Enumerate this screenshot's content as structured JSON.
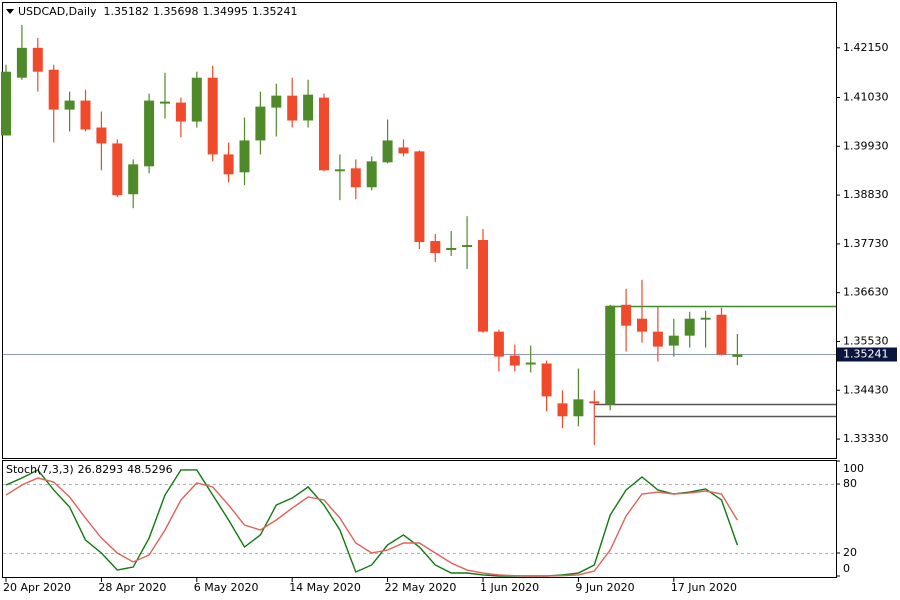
{
  "chart_data": [
    {
      "type": "candlestick",
      "symbol": "USDCAD,Daily",
      "header_ohlc": [
        1.35182,
        1.35698,
        1.34995,
        1.35241
      ],
      "categories": [
        "20 Apr 2020",
        null,
        null,
        null,
        null,
        null,
        "28 Apr 2020",
        null,
        null,
        null,
        null,
        null,
        "6 May 2020",
        null,
        null,
        null,
        null,
        null,
        "14 May 2020",
        null,
        null,
        null,
        null,
        null,
        "22 May 2020",
        null,
        null,
        null,
        null,
        null,
        "1 Jun 2020",
        null,
        null,
        null,
        null,
        null,
        "9 Jun 2020",
        null,
        null,
        null,
        null,
        null,
        "17 Jun 2020",
        null,
        null,
        null,
        null
      ],
      "open": [
        1.40174,
        1.41476,
        1.42149,
        1.41656,
        1.40757,
        1.4096,
        1.40353,
        1.39994,
        1.38849,
        1.39478,
        1.40892,
        1.40915,
        1.40488,
        1.41476,
        1.39747,
        1.39343,
        1.40062,
        1.40802,
        1.41072,
        1.40511,
        1.41027,
        1.39366,
        1.39433,
        1.39006,
        1.39568,
        1.39904,
        1.39815,
        1.37794,
        1.37592,
        1.37659,
        1.37817,
        1.35751,
        1.35212,
        1.3501,
        1.35033,
        1.34135,
        1.33843,
        1.3418,
        1.34112,
        1.36357,
        1.36043,
        1.35751,
        1.35437,
        1.35661,
        1.36021,
        1.36133,
        1.35182
      ],
      "high": [
        1.41768,
        1.42666,
        1.42374,
        1.41768,
        1.41162,
        1.41206,
        1.40713,
        1.40084,
        1.39635,
        1.41117,
        1.41588,
        1.41027,
        1.41611,
        1.41745,
        1.40017,
        1.40578,
        1.41162,
        1.41341,
        1.41476,
        1.41431,
        1.41117,
        1.39747,
        1.39635,
        1.39702,
        1.40533,
        1.40084,
        1.39837,
        1.37951,
        1.38019,
        1.38355,
        1.38063,
        1.35796,
        1.35459,
        1.35437,
        1.351,
        1.34427,
        1.3492,
        1.34427,
        1.36357,
        1.36716,
        1.36919,
        1.36312,
        1.36043,
        1.362,
        1.36223,
        1.3629,
        1.35698
      ],
      "low": [
        1.40174,
        1.41431,
        1.41162,
        1.40017,
        1.40264,
        1.40264,
        1.39388,
        1.38782,
        1.38535,
        1.39321,
        1.40555,
        1.40129,
        1.40353,
        1.3959,
        1.39119,
        1.39051,
        1.39747,
        1.40151,
        1.40353,
        1.40353,
        1.39366,
        1.38715,
        1.38737,
        1.38939,
        1.39545,
        1.39702,
        1.37614,
        1.37323,
        1.37457,
        1.37165,
        1.35729,
        1.34853,
        1.34853,
        1.34831,
        1.33955,
        1.33573,
        1.33618,
        1.33192,
        1.33978,
        1.35302,
        1.35504,
        1.35078,
        1.3519,
        1.35392,
        1.35392,
        1.35212,
        1.34995
      ],
      "close": [
        1.41611,
        1.42149,
        1.41611,
        1.40757,
        1.4096,
        1.40308,
        1.39994,
        1.38827,
        1.39523,
        1.4096,
        1.40937,
        1.40488,
        1.41476,
        1.39747,
        1.39298,
        1.40062,
        1.40825,
        1.41072,
        1.40511,
        1.41094,
        1.39388,
        1.3941,
        1.39006,
        1.3959,
        1.40062,
        1.3977,
        1.37772,
        1.37525,
        1.37637,
        1.37704,
        1.35751,
        1.3519,
        1.34988,
        1.35055,
        1.34292,
        1.33843,
        1.34225,
        1.34135,
        1.36335,
        1.35886,
        1.35751,
        1.35414,
        1.35661,
        1.36043,
        1.36065,
        1.35235,
        1.35241
      ],
      "up_color": "#4e8a2a",
      "down_color": "#f04a2c",
      "ylim": [
        1.32903,
        1.4316
      ],
      "yticks": [
        {
          "value": 1.4215,
          "label": "1.42150"
        },
        {
          "value": 1.4103,
          "label": "1.41030"
        },
        {
          "value": 1.3993,
          "label": "1.39930"
        },
        {
          "value": 1.3883,
          "label": "1.38830"
        },
        {
          "value": 1.3773,
          "label": "1.37730"
        },
        {
          "value": 1.3663,
          "label": "1.36630"
        },
        {
          "value": 1.3553,
          "label": "1.35530"
        },
        {
          "value": 1.3443,
          "label": "1.34430"
        },
        {
          "value": 1.3333,
          "label": "1.33330"
        }
      ],
      "hlines": [
        {
          "value": 1.36335,
          "color": "#3f8a2c"
        },
        {
          "value": 1.34112,
          "color": "#555555"
        },
        {
          "value": 1.33843,
          "color": "#555555"
        }
      ],
      "price_line_color": "#8c9bb3"
    },
    {
      "type": "line",
      "title": "Stoch(7,3,3)",
      "series": [
        {
          "color": "#107a10",
          "values": [
            79.1,
            85.2,
            92.2,
            74.8,
            60.0,
            31.3,
            20.0,
            5.2,
            7.8,
            33.0,
            70.4,
            92.2,
            92.2,
            70.4,
            48.7,
            25.2,
            35.7,
            61.7,
            67.8,
            77.4,
            61.7,
            40.0,
            3.5,
            9.6,
            27.0,
            35.7,
            25.2,
            9.6,
            2.6,
            2.6,
            0.9,
            0.0,
            0.0,
            0.0,
            0.0,
            0.9,
            2.6,
            9.6,
            53.0,
            74.8,
            86.1,
            74.8,
            71.3,
            73.0,
            75.7,
            66.1,
            26.8293
          ]
        },
        {
          "color": "#e0625a",
          "values": [
            70.4,
            79.1,
            85.2,
            81.7,
            68.7,
            50.4,
            33.0,
            20.0,
            12.2,
            18.3,
            40.0,
            66.1,
            80.9,
            77.4,
            61.7,
            44.3,
            40.0,
            48.7,
            59.1,
            68.7,
            66.1,
            50.4,
            28.7,
            20.0,
            22.6,
            28.7,
            28.7,
            20.0,
            11.3,
            5.2,
            2.6,
            0.9,
            0.3,
            0.0,
            0.0,
            0.3,
            0.9,
            4.3,
            22.6,
            52.2,
            71.3,
            73.0,
            71.3,
            72.2,
            73.9,
            71.3,
            48.5296
          ]
        }
      ],
      "ylim": [
        0,
        100
      ],
      "yticks": [
        100,
        80,
        20,
        0
      ],
      "levels": [
        80,
        20
      ]
    }
  ]
}
